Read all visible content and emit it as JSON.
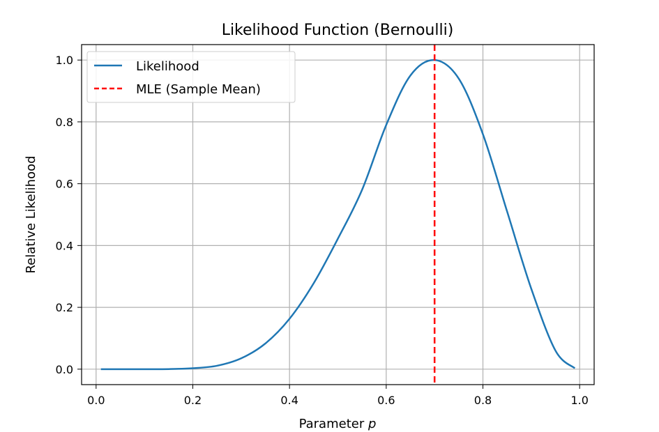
{
  "chart_data": {
    "type": "line",
    "title": "Likelihood Function (Bernoulli)",
    "xlabel": "Parameter",
    "xlabel_var": "p",
    "ylabel": "Relative Likelihood",
    "xlim": [
      -0.03,
      1.03
    ],
    "ylim": [
      -0.05,
      1.05
    ],
    "xticks": [
      0.0,
      0.2,
      0.4,
      0.6,
      0.8,
      1.0
    ],
    "xtick_labels": [
      "0.0",
      "0.2",
      "0.4",
      "0.6",
      "0.8",
      "1.0"
    ],
    "yticks": [
      0.0,
      0.2,
      0.4,
      0.6,
      0.8,
      1.0
    ],
    "ytick_labels": [
      "0.0",
      "0.2",
      "0.4",
      "0.6",
      "0.8",
      "1.0"
    ],
    "grid": true,
    "legend_placement": "upper-left",
    "series": [
      {
        "name": "Likelihood",
        "style": "solid",
        "color": "#1f77b4",
        "x": [
          0.01,
          0.05,
          0.1,
          0.15,
          0.2,
          0.25,
          0.3,
          0.35,
          0.4,
          0.45,
          0.5,
          0.55,
          0.6,
          0.65,
          0.7,
          0.75,
          0.8,
          0.85,
          0.9,
          0.95,
          0.99
        ],
        "y": [
          0.0,
          0.0,
          0.0,
          0.0003,
          0.003,
          0.011,
          0.035,
          0.083,
          0.163,
          0.278,
          0.422,
          0.58,
          0.79,
          0.95,
          1.0,
          0.94,
          0.76,
          0.51,
          0.26,
          0.06,
          0.003
        ]
      },
      {
        "name": "MLE (Sample Mean)",
        "style": "dashed",
        "color": "#ff0000",
        "x_const": 0.7
      }
    ]
  }
}
